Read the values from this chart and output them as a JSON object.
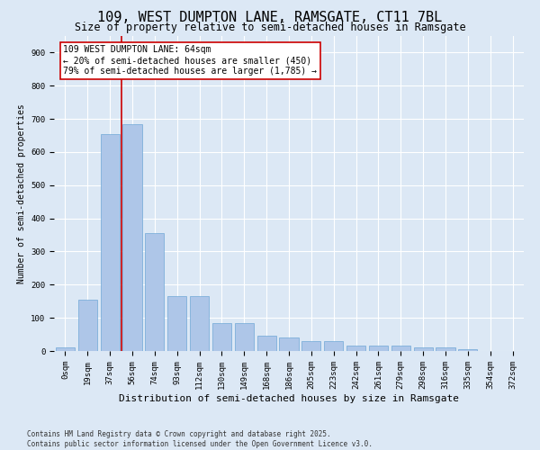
{
  "title": "109, WEST DUMPTON LANE, RAMSGATE, CT11 7BL",
  "subtitle": "Size of property relative to semi-detached houses in Ramsgate",
  "xlabel": "Distribution of semi-detached houses by size in Ramsgate",
  "ylabel": "Number of semi-detached properties",
  "categories": [
    "0sqm",
    "19sqm",
    "37sqm",
    "56sqm",
    "74sqm",
    "93sqm",
    "112sqm",
    "130sqm",
    "149sqm",
    "168sqm",
    "186sqm",
    "205sqm",
    "223sqm",
    "242sqm",
    "261sqm",
    "279sqm",
    "298sqm",
    "316sqm",
    "335sqm",
    "354sqm",
    "372sqm"
  ],
  "values": [
    10,
    155,
    655,
    685,
    355,
    165,
    165,
    85,
    85,
    45,
    40,
    30,
    30,
    15,
    15,
    15,
    10,
    10,
    5,
    0,
    0
  ],
  "bar_color": "#aec6e8",
  "bar_edge_color": "#6fa8d6",
  "background_color": "#dce8f5",
  "grid_color": "#ffffff",
  "vline_color": "#cc0000",
  "vline_x_index": 3,
  "annotation_text": "109 WEST DUMPTON LANE: 64sqm\n← 20% of semi-detached houses are smaller (450)\n79% of semi-detached houses are larger (1,785) →",
  "annotation_box_color": "#ffffff",
  "annotation_box_edge": "#cc0000",
  "ylim": [
    0,
    950
  ],
  "yticks": [
    0,
    100,
    200,
    300,
    400,
    500,
    600,
    700,
    800,
    900
  ],
  "footer": "Contains HM Land Registry data © Crown copyright and database right 2025.\nContains public sector information licensed under the Open Government Licence v3.0.",
  "title_fontsize": 11,
  "subtitle_fontsize": 8.5,
  "xlabel_fontsize": 8,
  "ylabel_fontsize": 7,
  "tick_fontsize": 6.5,
  "annotation_fontsize": 7,
  "footer_fontsize": 5.5
}
